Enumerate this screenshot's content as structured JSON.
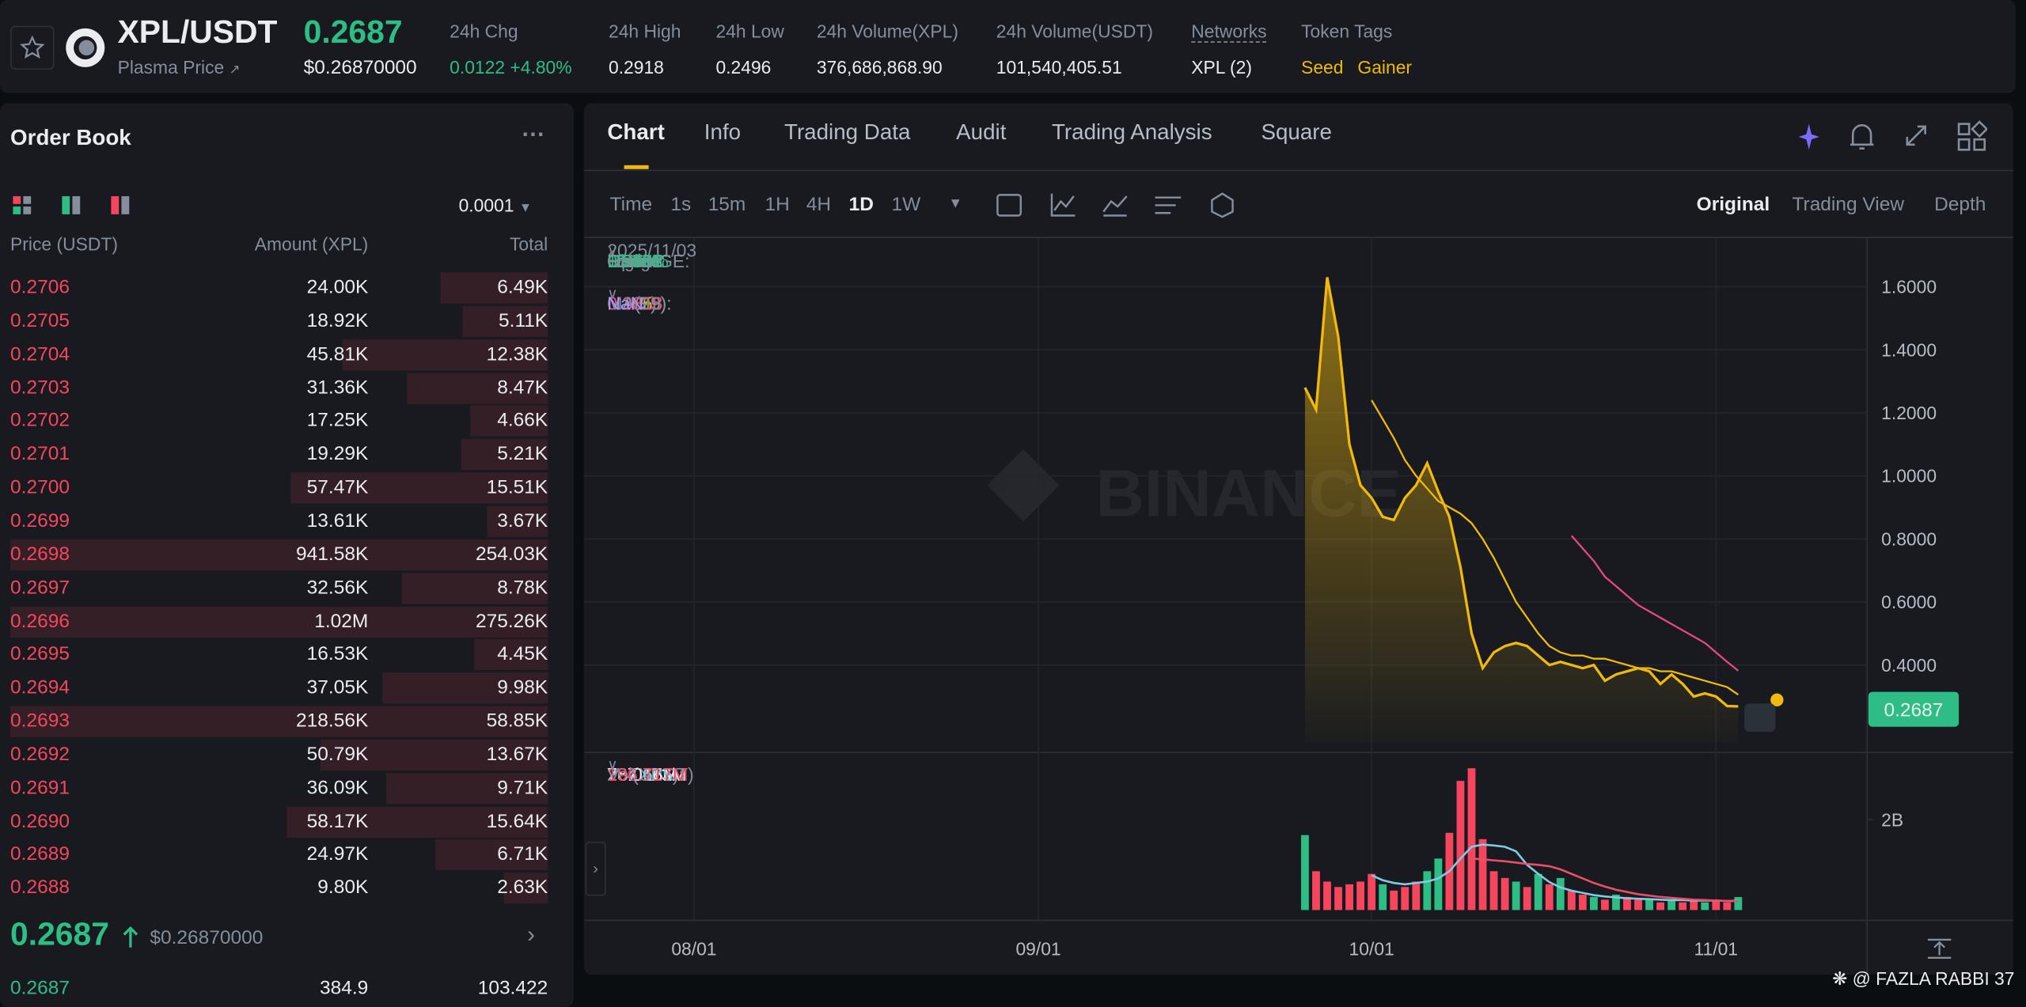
{
  "header": {
    "symbol": "XPL/USDT",
    "name": "Plasma Price",
    "price": "0.2687",
    "price_usd": "$0.26870000",
    "stats": [
      {
        "label": "24h Chg",
        "value": "0.0122 +4.80%"
      },
      {
        "label": "24h High",
        "value": "0.2918"
      },
      {
        "label": "24h Low",
        "value": "0.2496"
      },
      {
        "label": "24h Volume(XPL)",
        "value": "376,686,868.90"
      },
      {
        "label": "24h Volume(USDT)",
        "value": "101,540,405.51"
      },
      {
        "label": "Networks",
        "value": "XPL (2)"
      }
    ],
    "token_tags": {
      "label": "Token Tags",
      "tags": [
        "Seed",
        "Gainer"
      ]
    }
  },
  "order_book": {
    "title": "Order Book",
    "precision": "0.0001",
    "columns": [
      "Price (USDT)",
      "Amount (XPL)",
      "Total"
    ],
    "asks": [
      [
        "0.2706",
        "24.00K",
        "6.49K"
      ],
      [
        "0.2705",
        "18.92K",
        "5.11K"
      ],
      [
        "0.2704",
        "45.81K",
        "12.38K"
      ],
      [
        "0.2703",
        "31.36K",
        "8.47K"
      ],
      [
        "0.2702",
        "17.25K",
        "4.66K"
      ],
      [
        "0.2701",
        "19.29K",
        "5.21K"
      ],
      [
        "0.2700",
        "57.47K",
        "15.51K"
      ],
      [
        "0.2699",
        "13.61K",
        "3.67K"
      ],
      [
        "0.2698",
        "941.58K",
        "254.03K"
      ],
      [
        "0.2697",
        "32.56K",
        "8.78K"
      ],
      [
        "0.2696",
        "1.02M",
        "275.26K"
      ],
      [
        "0.2695",
        "16.53K",
        "4.45K"
      ],
      [
        "0.2694",
        "37.05K",
        "9.98K"
      ],
      [
        "0.2693",
        "218.56K",
        "58.85K"
      ],
      [
        "0.2692",
        "50.79K",
        "13.67K"
      ],
      [
        "0.2691",
        "36.09K",
        "9.71K"
      ],
      [
        "0.2690",
        "58.17K",
        "15.64K"
      ],
      [
        "0.2689",
        "24.97K",
        "6.71K"
      ],
      [
        "0.2688",
        "9.80K",
        "2.63K"
      ]
    ],
    "last_price": "0.2687",
    "last_price_usd": "$0.26870000",
    "bids": [
      [
        "0.2687",
        "384.9",
        "103.422"
      ]
    ]
  },
  "chart_panel": {
    "tabs": [
      "Chart",
      "Info",
      "Trading Data",
      "Audit",
      "Trading Analysis",
      "Square"
    ],
    "active_tab": 0,
    "intervals": [
      "Time",
      "1s",
      "15m",
      "1H",
      "4H",
      "1D",
      "1W"
    ],
    "active_interval": 5,
    "views": [
      "Original",
      "Trading View",
      "Depth"
    ],
    "active_view": 0,
    "ohlc": {
      "date": "2025/11/03",
      "items": [
        {
          "label": "Open:",
          "value": "0.2661"
        },
        {
          "label": "High:",
          "value": "0.2918"
        },
        {
          "label": "Low:",
          "value": "0.2496"
        },
        {
          "label": "Close:",
          "value": "0.2687"
        },
        {
          "label": "CHANGE:",
          "value": "0.97%"
        },
        {
          "label": "Range:",
          "value": "15.85%"
        }
      ]
    },
    "ma": [
      {
        "label": "MA(7):",
        "value": "0.3058",
        "color": "#f0b90b"
      },
      {
        "label": "MA(25):",
        "value": "0.3818",
        "color": "#e94784"
      },
      {
        "label": "MA(99):",
        "value": "NaN",
        "color": "#a59aff"
      }
    ],
    "volume_legend": [
      {
        "label": "Vol(XPL):",
        "value": "287.113M",
        "color": "#eaecef"
      },
      {
        "label": "Vol(USDT)",
        "value": "78.066M",
        "color": "#eaecef"
      },
      {
        "value": "204.675M",
        "color": "#7ecbe3"
      },
      {
        "value": "196.717M",
        "color": "#f6465d"
      }
    ],
    "watermark": "BINANCE",
    "price_tag": "0.2687"
  },
  "chart_data": [
    {
      "type": "line",
      "x": [
        55,
        56,
        57,
        58,
        59,
        60,
        61,
        62,
        63,
        64,
        65,
        66,
        67,
        68,
        69,
        70,
        71,
        72,
        73,
        74,
        75,
        76,
        77,
        78,
        79,
        80,
        81,
        82,
        83,
        84,
        85,
        86,
        87,
        88,
        89,
        90,
        91,
        92,
        93,
        94
      ],
      "xlim": [
        -9.9,
        105.6
      ],
      "xticks": [
        {
          "value": 0,
          "label": "08/01"
        },
        {
          "value": 31,
          "label": "09/01"
        },
        {
          "value": 61,
          "label": "10/01"
        },
        {
          "value": 92,
          "label": "11/01"
        }
      ],
      "ylim": [
        0.155,
        1.752
      ],
      "yticks": [
        {
          "value": 0.4,
          "label": "0.4000"
        },
        {
          "value": 0.6,
          "label": "0.6000"
        },
        {
          "value": 0.8,
          "label": "0.8000"
        },
        {
          "value": 1.0,
          "label": "1.0000"
        },
        {
          "value": 1.2,
          "label": "1.2000"
        },
        {
          "value": 1.4,
          "label": "1.4000"
        },
        {
          "value": 1.6,
          "label": "1.6000"
        }
      ],
      "grid": true,
      "series": [
        {
          "color": "#f0b90b",
          "area": true,
          "values": [
            1.28,
            1.21,
            1.63,
            1.44,
            1.1,
            0.97,
            0.93,
            0.87,
            0.86,
            0.93,
            0.97,
            1.04,
            0.95,
            0.87,
            0.71,
            0.5,
            0.39,
            0.44,
            0.46,
            0.47,
            0.46,
            0.43,
            0.4,
            0.41,
            0.4,
            0.39,
            0.4,
            0.35,
            0.37,
            0.38,
            0.39,
            0.38,
            0.34,
            0.37,
            0.34,
            0.3,
            0.31,
            0.3,
            0.27,
            0.2687
          ]
        },
        {
          "color": "#f0b90b",
          "values": [
            null,
            null,
            null,
            null,
            null,
            null,
            1.24,
            1.18,
            1.12,
            1.05,
            1.0,
            0.96,
            0.92,
            0.9,
            0.88,
            0.85,
            0.8,
            0.74,
            0.67,
            0.6,
            0.55,
            0.5,
            0.46,
            0.44,
            0.43,
            0.43,
            0.42,
            0.42,
            0.41,
            0.4,
            0.39,
            0.39,
            0.38,
            0.38,
            0.37,
            0.36,
            0.35,
            0.34,
            0.33,
            0.3058
          ]
        },
        {
          "color": "#e94784",
          "values": [
            null,
            null,
            null,
            null,
            null,
            null,
            null,
            null,
            null,
            null,
            null,
            null,
            null,
            null,
            null,
            null,
            null,
            null,
            null,
            null,
            null,
            null,
            null,
            null,
            0.81,
            0.77,
            0.73,
            0.68,
            0.65,
            0.62,
            0.59,
            0.57,
            0.55,
            0.53,
            0.51,
            0.49,
            0.47,
            0.44,
            0.41,
            0.3818
          ]
        }
      ]
    },
    {
      "type": "bar",
      "x": [
        55,
        56,
        57,
        58,
        59,
        60,
        61,
        62,
        63,
        64,
        65,
        66,
        67,
        68,
        69,
        70,
        71,
        72,
        73,
        74,
        75,
        76,
        77,
        78,
        79,
        80,
        81,
        82,
        83,
        84,
        85,
        86,
        87,
        88,
        89,
        90,
        91,
        92,
        93,
        94
      ],
      "values": [
        1.66,
        0.86,
        0.63,
        0.51,
        0.57,
        0.63,
        0.8,
        0.57,
        0.43,
        0.51,
        0.63,
        0.86,
        1.14,
        1.71,
        2.86,
        3.14,
        1.57,
        0.86,
        0.71,
        0.63,
        0.51,
        0.8,
        0.57,
        0.71,
        0.43,
        0.34,
        0.29,
        0.23,
        0.34,
        0.29,
        0.23,
        0.23,
        0.17,
        0.23,
        0.17,
        0.23,
        0.17,
        0.23,
        0.17,
        0.287113
      ],
      "colors": [
        "#2ebd85",
        "#f6465d",
        "#f6465d",
        "#f6465d",
        "#f6465d",
        "#f6465d",
        "#f6465d",
        "#2ebd85",
        "#f6465d",
        "#f6465d",
        "#f6465d",
        "#2ebd85",
        "#2ebd85",
        "#f6465d",
        "#f6465d",
        "#f6465d",
        "#f6465d",
        "#f6465d",
        "#f6465d",
        "#2ebd85",
        "#f6465d",
        "#2ebd85",
        "#f6465d",
        "#2ebd85",
        "#f6465d",
        "#f6465d",
        "#2ebd85",
        "#f6465d",
        "#2ebd85",
        "#f6465d",
        "#f6465d",
        "#2ebd85",
        "#f6465d",
        "#2ebd85",
        "#f6465d",
        "#f6465d",
        "#2ebd85",
        "#f6465d",
        "#f6465d",
        "#2ebd85"
      ],
      "ylim": [
        0,
        3.43
      ],
      "yticks": [
        {
          "value": 2,
          "label": "2B"
        }
      ],
      "series": [
        {
          "color": "#7ecbe3",
          "values": [
            null,
            null,
            null,
            null,
            null,
            null,
            0.77,
            0.66,
            0.6,
            0.57,
            0.6,
            0.63,
            0.7,
            0.86,
            1.14,
            1.4,
            1.45,
            1.43,
            1.4,
            1.3,
            1.0,
            0.8,
            0.62,
            0.5,
            0.43,
            0.38,
            0.33,
            0.3,
            0.28,
            0.26,
            0.25,
            0.24,
            0.23,
            0.22,
            0.22,
            0.21,
            0.21,
            0.21,
            0.2,
            0.204675
          ]
        },
        {
          "color": "#e94e6a",
          "values": [
            null,
            null,
            null,
            null,
            null,
            null,
            null,
            null,
            null,
            null,
            null,
            null,
            null,
            null,
            null,
            1.14,
            1.12,
            1.1,
            1.08,
            1.05,
            1.02,
            1.0,
            0.97,
            0.9,
            0.8,
            0.7,
            0.6,
            0.52,
            0.45,
            0.4,
            0.35,
            0.32,
            0.29,
            0.27,
            0.25,
            0.23,
            0.22,
            0.21,
            0.2,
            0.196717
          ]
        }
      ]
    }
  ],
  "footer": "@ FAZLA RABBI 37"
}
